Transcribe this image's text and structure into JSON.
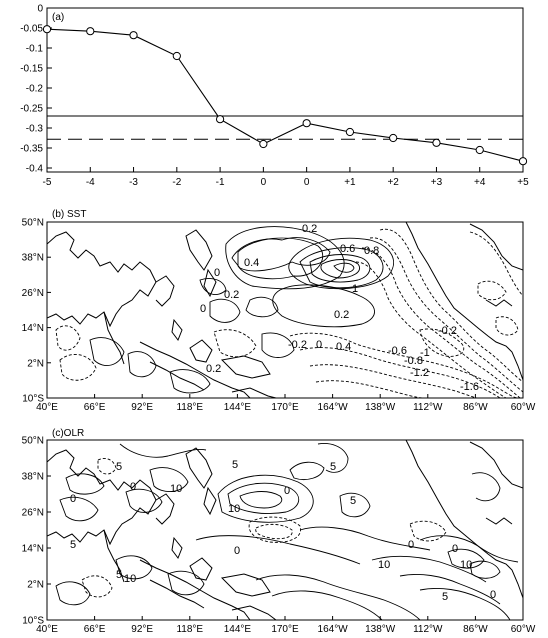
{
  "chart_data": [
    {
      "type": "line",
      "panel_label": "(a)",
      "x_ticks": [
        "-5",
        "-4",
        "-3",
        "-2",
        "-1",
        "0",
        "0",
        "+1",
        "+2",
        "+3",
        "+4",
        "+5"
      ],
      "values": [
        -0.053,
        -0.058,
        -0.068,
        -0.12,
        -0.278,
        -0.34,
        -0.288,
        -0.31,
        -0.325,
        -0.337,
        -0.355,
        -0.383
      ],
      "y_ticks": [
        "0",
        "-0.05",
        "-0.1",
        "-0.15",
        "-0.2",
        "-0.25",
        "-0.3",
        "-0.35",
        "-0.4"
      ],
      "ylim": [
        -0.41,
        0
      ],
      "ref_solid": -0.27,
      "ref_dashed": -0.328
    },
    {
      "type": "heatmap",
      "panel_label": "(b) SST",
      "lat_ticks": [
        "50°N",
        "38°N",
        "26°N",
        "14°N",
        "2°N",
        "10°S"
      ],
      "lon_ticks": [
        "40°E",
        "66°E",
        "92°E",
        "118°E",
        "144°E",
        "170°E",
        "164°W",
        "138°W",
        "112°W",
        "86°W",
        "60°W"
      ],
      "contour_labels": [
        "0.2",
        "0.4",
        "0.6",
        "0",
        "0.8",
        "1",
        "0.2",
        "0.2",
        "0",
        "-0.2",
        "0",
        "0.4",
        "-0.2",
        "-0.6",
        "-0.8",
        "-1",
        "-1.2",
        "-1.6",
        "0.2"
      ]
    },
    {
      "type": "heatmap",
      "panel_label": "(c)OLR",
      "lat_ticks": [
        "50°N",
        "38°N",
        "26°N",
        "14°N",
        "2°N",
        "10°S"
      ],
      "lon_ticks": [
        "40°E",
        "66°E",
        "92°E",
        "118°E",
        "144°E",
        "170°E",
        "164°W",
        "138°W",
        "112°W",
        "86°W",
        "60°W"
      ],
      "contour_labels": [
        "5",
        "0",
        "10",
        "5",
        "0",
        "10",
        "5",
        "0",
        "5",
        "0",
        "5",
        "10",
        "5",
        "0",
        "10",
        "0",
        "10",
        "5",
        "0"
      ]
    }
  ]
}
